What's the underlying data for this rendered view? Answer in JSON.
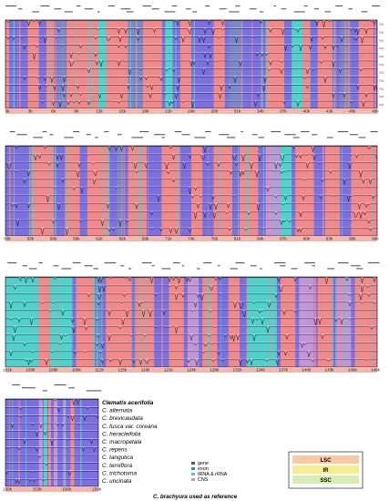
{
  "figure": {
    "panels": [
      {
        "start_kb": 0,
        "ticks": [
          "0k",
          "3k",
          "6k",
          "9k",
          "12k",
          "15k",
          "18k",
          "21k",
          "24k",
          "28k",
          "31k",
          "34k",
          "37k",
          "40k",
          "43k",
          "46k",
          "49k"
        ]
      },
      {
        "start_kb": 50,
        "ticks": [
          "50k",
          "53k",
          "56k",
          "59k",
          "62k",
          "65k",
          "68k",
          "71k",
          "74k",
          "78k",
          "81k",
          "84k",
          "87k",
          "90k",
          "93k",
          "96k",
          "99k"
        ]
      },
      {
        "start_kb": 101,
        "ticks": [
          "101k",
          "103k",
          "106k",
          "109k",
          "112k",
          "115k",
          "118k",
          "121k",
          "124k",
          "128k",
          "131k",
          "134k",
          "137k",
          "140k",
          "143k",
          "146k",
          "149k"
        ]
      },
      {
        "start_kb": 150,
        "ticks": [
          "150k",
          "153k",
          "156k",
          "159k"
        ]
      }
    ],
    "species": [
      "Clematis acerifolia",
      "C. alternata",
      "C. brevicaudata",
      "C. fusca var. coreana",
      "C. heracleifolia",
      "C. macropetala",
      "C. repens",
      "C. tangutica",
      "C. terniflora",
      "C. trichotoma",
      "C. uncinata"
    ],
    "feature_legend": [
      {
        "label": "gene",
        "color": "#555566"
      },
      {
        "label": "exon",
        "color": "#3f7fd6"
      },
      {
        "label": "tRNA & rRNA",
        "color": "#4fc8cc"
      },
      {
        "label": "CNS",
        "color": "#e88e8e"
      }
    ],
    "region_legend": [
      {
        "label": "LSC",
        "color": "#f7c9a5"
      },
      {
        "label": "IR",
        "color": "#f6ee8e"
      },
      {
        "label": "SSC",
        "color": "#d6eeb4"
      }
    ],
    "reference_note": "C. brachyura used as reference",
    "row_tag": "CQL",
    "colors": {
      "conserved": "#7b70e3",
      "cns": "#f2888a",
      "exon": "#7a87cc",
      "rna": "#4fd2cc",
      "utr": "#c394d6",
      "lsc": "#f7c9a5",
      "ir": "#f6ee8e",
      "ssc": "#d6eeb4",
      "trace": "#111111"
    }
  }
}
